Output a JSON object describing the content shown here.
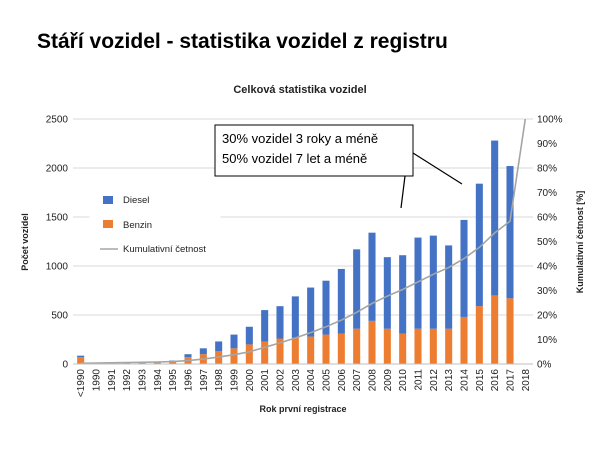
{
  "slide": {
    "title": "Stáří vozidel - statistika vozidel z registru"
  },
  "chart_data": {
    "type": "bar",
    "stacked": true,
    "title": "Celková statistika vozidel",
    "xlabel": "Rok první registrace",
    "ylabel": "Počet vozidel",
    "y2label": "Kumulativní četnost [%]",
    "ylim": [
      0,
      2500
    ],
    "y2lim": [
      0,
      100
    ],
    "yticks": [
      0,
      500,
      1000,
      1500,
      2000,
      2500
    ],
    "y2ticks": [
      "0%",
      "10%",
      "20%",
      "30%",
      "40%",
      "50%",
      "60%",
      "70%",
      "80%",
      "90%",
      "100%"
    ],
    "categories": [
      "<1990",
      "1990",
      "1991",
      "1992",
      "1993",
      "1994",
      "1995",
      "1996",
      "1997",
      "1998",
      "1999",
      "2000",
      "2001",
      "2002",
      "2003",
      "2004",
      "2005",
      "2006",
      "2007",
      "2008",
      "2009",
      "2010",
      "2011",
      "2012",
      "2013",
      "2014",
      "2015",
      "2016",
      "2017",
      "2018"
    ],
    "series": [
      {
        "name": "Benzin",
        "color": "#ed7d31",
        "values": [
          70,
          5,
          5,
          10,
          10,
          15,
          20,
          70,
          100,
          130,
          160,
          200,
          230,
          260,
          270,
          280,
          300,
          310,
          360,
          440,
          360,
          310,
          360,
          360,
          360,
          480,
          590,
          700,
          670,
          0
        ]
      },
      {
        "name": "Diesel",
        "color": "#4472c4",
        "values": [
          15,
          5,
          5,
          5,
          5,
          10,
          15,
          30,
          60,
          100,
          140,
          180,
          320,
          330,
          420,
          500,
          550,
          660,
          810,
          900,
          730,
          800,
          930,
          950,
          850,
          990,
          1250,
          1580,
          1350,
          0
        ]
      },
      {
        "name": "Kumulativní četnost",
        "type": "line",
        "axis": "secondary",
        "color": "#a5a5a5",
        "values": [
          0.3,
          0.4,
          0.5,
          0.6,
          0.7,
          0.8,
          1.0,
          1.4,
          2.0,
          2.8,
          3.8,
          5.0,
          6.8,
          8.6,
          10.6,
          12.8,
          15.2,
          17.9,
          21.1,
          24.7,
          27.7,
          30.4,
          33.5,
          36.6,
          39.4,
          43.0,
          47.6,
          53.5,
          58.3,
          100
        ]
      }
    ],
    "legend": [
      "Diesel",
      "Benzin",
      "Kumulativní četnost"
    ],
    "legend_position": "left",
    "grid": true,
    "annotation": [
      "30% vozidel 3 roky a méně",
      "50% vozidel 7 let a méně"
    ]
  }
}
